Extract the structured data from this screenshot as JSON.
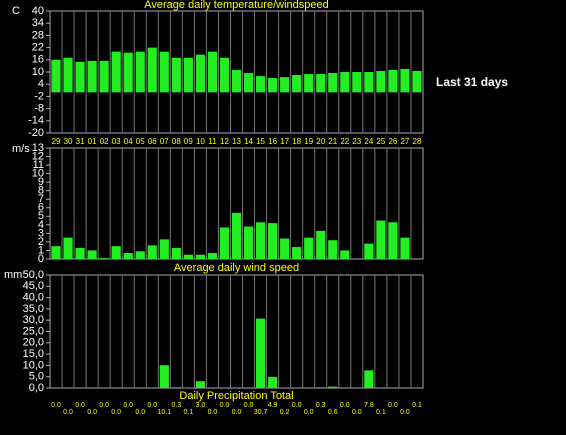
{
  "chart_data": [
    {
      "type": "bar",
      "title": "Average daily temperature/windspeed",
      "y_label": "C",
      "annotation": "Last 31 days",
      "categories": [
        "29",
        "30",
        "31",
        "01",
        "02",
        "03",
        "04",
        "05",
        "06",
        "07",
        "08",
        "09",
        "10",
        "11",
        "12",
        "13",
        "14",
        "15",
        "16",
        "17",
        "18",
        "19",
        "20",
        "21",
        "22",
        "23",
        "24",
        "25",
        "26",
        "27",
        "28"
      ],
      "values": [
        16,
        17,
        15,
        15.5,
        15.5,
        20,
        19.5,
        20,
        22,
        20,
        17,
        17,
        18.5,
        20,
        17,
        11,
        9.5,
        8,
        7,
        7.5,
        8.5,
        9,
        9,
        9.5,
        10,
        10,
        10,
        10.5,
        11,
        11.5,
        10.5
      ],
      "color": "#22ee22",
      "ylim": [
        -20,
        40
      ],
      "yticks": [
        40,
        34,
        28,
        22,
        16,
        10,
        4,
        -2,
        -8,
        -14,
        -20
      ]
    },
    {
      "type": "bar",
      "title": "Average daily wind speed",
      "y_label": "m/s",
      "values": [
        1.5,
        2.5,
        1.3,
        1,
        0.1,
        1.5,
        0.7,
        0.9,
        1.6,
        2.3,
        1.3,
        0.5,
        0.5,
        0.7,
        3.7,
        5.4,
        3.8,
        4.3,
        4.2,
        2.4,
        1.4,
        2.5,
        3.3,
        2.2,
        1,
        0,
        1.8,
        4.5,
        4.3,
        2.5,
        0
      ],
      "color": "#22ee22",
      "ylim": [
        0,
        13
      ],
      "yticks": [
        0,
        1,
        2,
        3,
        4,
        5,
        6,
        7,
        8,
        9,
        10,
        11,
        12,
        13
      ]
    },
    {
      "type": "bar",
      "title": "Daily Precipitation Total",
      "y_label": "mm",
      "values": [
        0,
        0,
        0,
        0,
        0,
        0,
        0,
        0,
        0,
        10.1,
        0.3,
        0.1,
        3,
        0,
        0,
        0,
        0,
        30.7,
        4.9,
        0.2,
        0,
        0,
        0.3,
        0.6,
        0,
        0,
        7.8,
        0.1,
        0,
        0,
        0.1
      ],
      "value_labels": [
        "0.0",
        "0.0",
        "0.0",
        "0.0",
        "0.0",
        "0.0",
        "0.0",
        "0.0",
        "0.0",
        "10.1",
        "0.3",
        "0.1",
        "3.0",
        "0.0",
        "0.0",
        "0.0",
        "0.0",
        "30.7",
        "4.9",
        "0.2",
        "0.0",
        "0.0",
        "0.3",
        "0.6",
        "0.0",
        "0.0",
        "7.8",
        "0.1",
        "0.0",
        "0.0",
        "0.1"
      ],
      "color": "#22ee22",
      "ylim": [
        0,
        50
      ],
      "yticks": [
        {
          "value": 0,
          "label": "0,0"
        },
        {
          "value": 5,
          "label": "5,0"
        },
        {
          "value": 10,
          "label": "10,0"
        },
        {
          "value": 15,
          "label": "15,0"
        },
        {
          "value": 20,
          "label": "20,0"
        },
        {
          "value": 25,
          "label": "25,0"
        },
        {
          "value": 30,
          "label": "30,0"
        },
        {
          "value": 35,
          "label": "35,0"
        },
        {
          "value": 40,
          "label": "40,0"
        },
        {
          "value": 45,
          "label": "45,0"
        },
        {
          "value": 50,
          "label": "50,0"
        }
      ]
    }
  ]
}
